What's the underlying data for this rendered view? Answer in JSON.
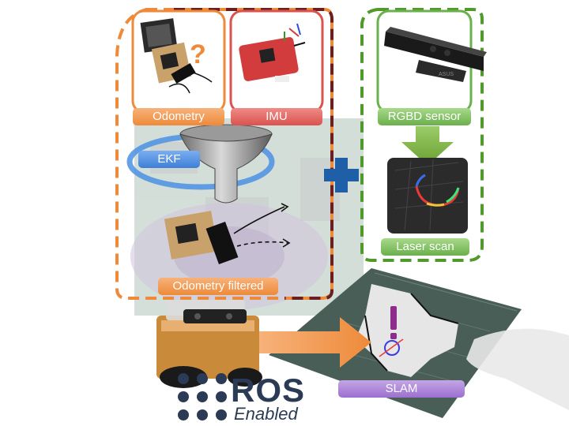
{
  "labels": {
    "odometry": "Odometry",
    "imu": "IMU",
    "ekf": "EKF",
    "rgbd_sensor": "RGBD sensor",
    "laser_scan": "Laser scan",
    "odometry_filtered": "Odometry filtered",
    "slam": "SLAM"
  },
  "logo": {
    "word": "ROS",
    "subtitle": "Enabled",
    "sensor_brand": "ASUS"
  },
  "colors": {
    "orange": "#ee8a3a",
    "dark_red": "#6b1f1f",
    "green": "#4f9a2a",
    "blue_plus": "#1f5fa8",
    "ekf_ring": "#4a90e2",
    "slam_purple": "#9b6fd0",
    "marker_purple": "#8e2c8e"
  },
  "icons": {
    "funnel": "funnel-icon",
    "plus": "plus-icon",
    "arrow_down": "arrow-down-icon",
    "arrow_right": "arrow-right-icon",
    "exclamation": "exclamation-icon",
    "question": "question-mark-icon"
  }
}
